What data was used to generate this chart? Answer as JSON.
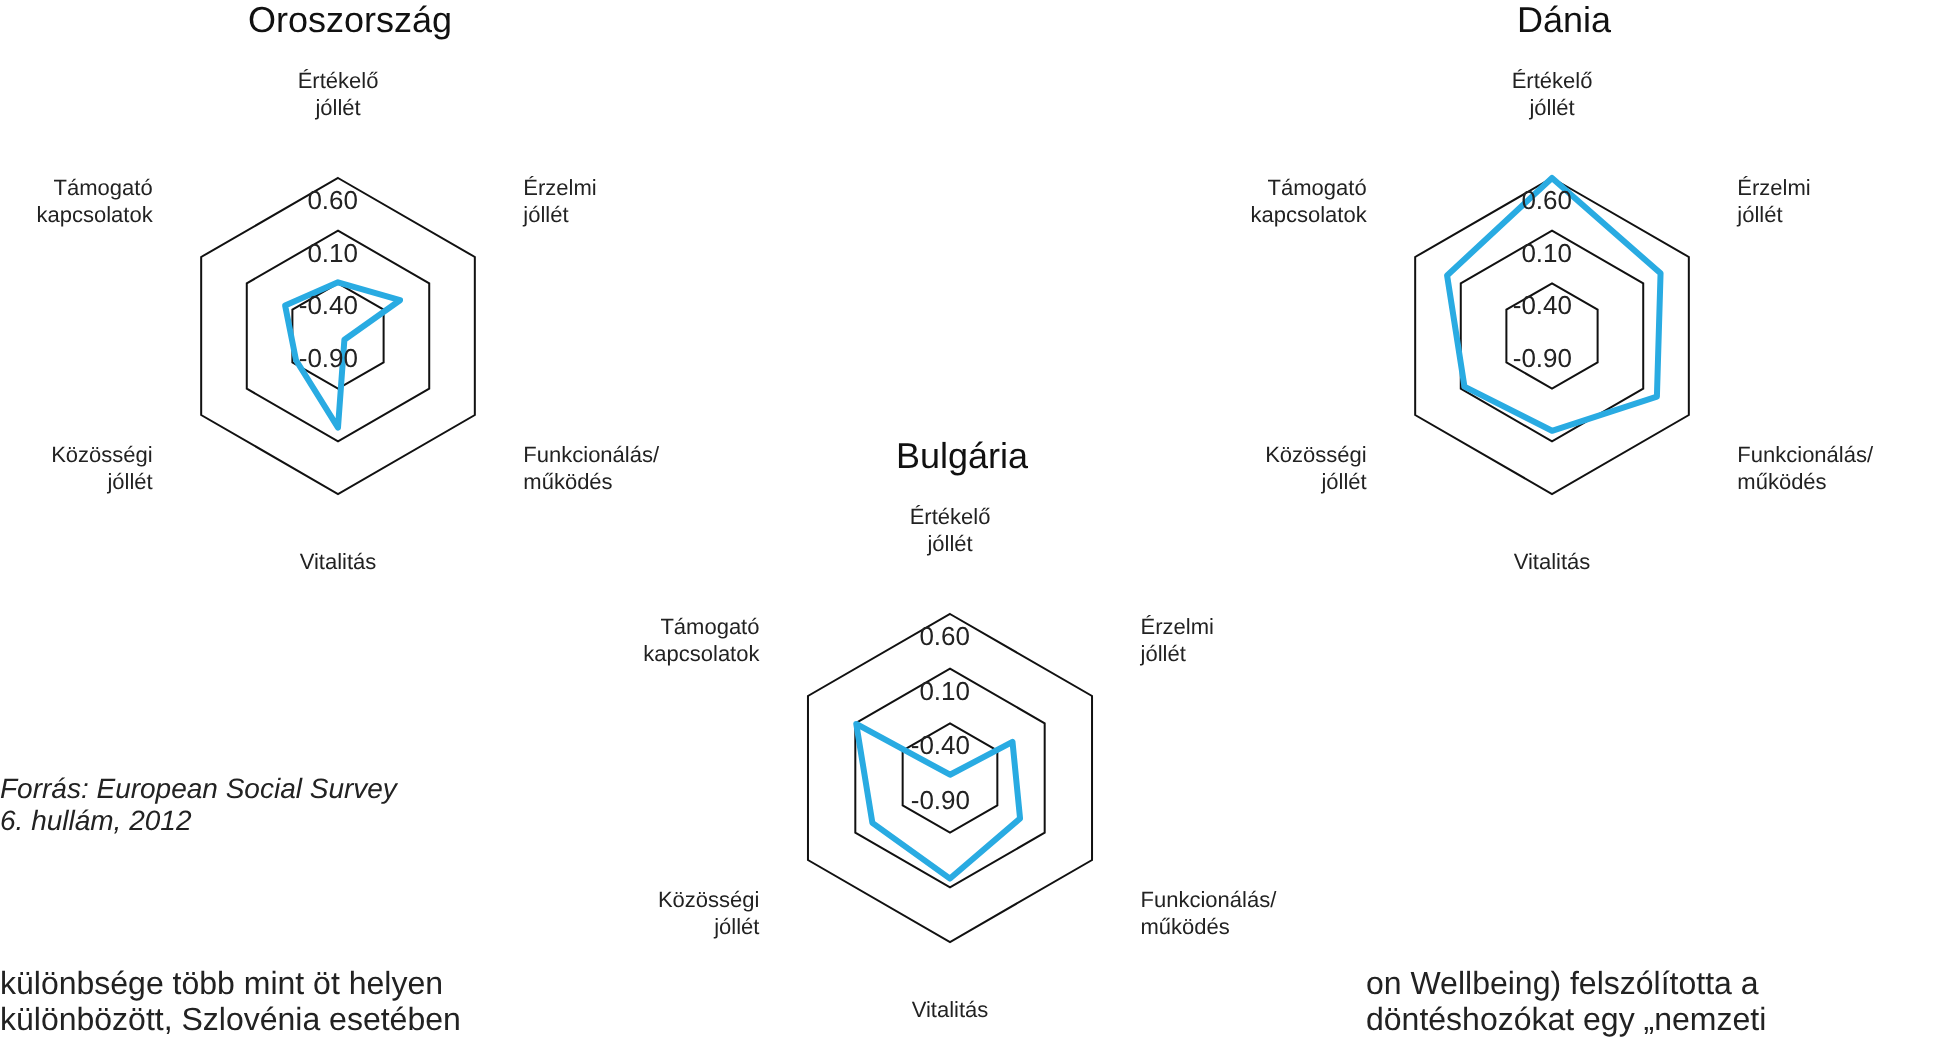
{
  "chart_data": [
    {
      "type": "radar",
      "title": "Oroszország",
      "categories": [
        "Értékelő jóllét",
        "Érzelmi jóllét",
        "Funkcionálás/ működés",
        "Vitalitás",
        "Közösségi jóllét",
        "Támogató kapcsolatok"
      ],
      "ylim": [
        -0.9,
        0.6
      ],
      "yticks": [
        {
          "value": -0.9,
          "label": "-0.90"
        },
        {
          "value": -0.4,
          "label": "-0.40"
        },
        {
          "value": 0.1,
          "label": "0.10"
        },
        {
          "value": 0.6,
          "label": "0.60"
        }
      ],
      "marker": "none",
      "legend": false,
      "series": [
        {
          "color": "#29abe2",
          "values": [
            -0.39,
            -0.22,
            -0.83,
            -0.03,
            -0.44,
            -0.32
          ]
        }
      ],
      "annotations": [
        "Forrás: European Social Survey\n6. hullám, 2012"
      ]
    },
    {
      "type": "radar",
      "title": "Dánia",
      "categories": [
        "Értékelő jóllét",
        "Érzelmi jóllét",
        "Funkcionálás/ működés",
        "Vitalitás",
        "Közösségi jóllét",
        "Támogató kapcsolatok"
      ],
      "ylim": [
        -0.9,
        0.6
      ],
      "yticks": [
        {
          "value": -0.9,
          "label": "-0.90"
        },
        {
          "value": -0.4,
          "label": "-0.40"
        },
        {
          "value": 0.1,
          "label": "0.10"
        },
        {
          "value": 0.6,
          "label": "0.60"
        }
      ],
      "marker": "none",
      "legend": false,
      "series": [
        {
          "color": "#29abe2",
          "values": [
            0.6,
            0.29,
            0.25,
            0.0,
            0.06,
            0.25
          ]
        }
      ]
    },
    {
      "type": "radar",
      "title": "Bulgária",
      "categories": [
        "Értékelő jóllét",
        "Érzelmi jóllét",
        "Funkcionálás/ működés",
        "Vitalitás",
        "Közösségi jóllét",
        "Támogató kapcsolatok"
      ],
      "ylim": [
        -0.9,
        0.6
      ],
      "yticks": [
        {
          "value": -0.9,
          "label": "-0.90"
        },
        {
          "value": -0.4,
          "label": "-0.40"
        },
        {
          "value": 0.1,
          "label": "0.10"
        },
        {
          "value": 0.6,
          "label": "0.60"
        }
      ],
      "marker": "none",
      "legend": false,
      "series": [
        {
          "color": "#29abe2",
          "values": [
            -0.87,
            -0.24,
            -0.16,
            0.02,
            -0.08,
            0.09
          ]
        }
      ]
    },
    {
      "type": "other",
      "annotations": [
        "különbsége több mint öt helyen\nkülönbözött, Szlovénia esetében",
        "on Wellbeing) felszólította a\ndöntéshozókat egy „nemzeti"
      ]
    }
  ]
}
